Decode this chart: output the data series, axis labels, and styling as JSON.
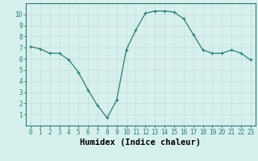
{
  "x": [
    0,
    1,
    2,
    3,
    4,
    5,
    6,
    7,
    8,
    9,
    10,
    11,
    12,
    13,
    14,
    15,
    16,
    17,
    18,
    19,
    20,
    21,
    22,
    23
  ],
  "y": [
    7.1,
    6.9,
    6.5,
    6.5,
    5.9,
    4.8,
    3.2,
    1.8,
    0.7,
    2.3,
    6.8,
    8.6,
    10.1,
    10.3,
    10.3,
    10.2,
    9.6,
    8.2,
    6.8,
    6.5,
    6.5,
    6.8,
    6.5,
    5.9
  ],
  "line_color": "#2d7d6e",
  "marker": "+",
  "marker_size": 3,
  "marker_linewidth": 0.8,
  "linewidth": 0.9,
  "background_color": "#d6f0ee",
  "grid_color": "#c8ddd9",
  "xlabel": "Humidex (Indice chaleur)",
  "xlim": [
    -0.5,
    23.5
  ],
  "ylim": [
    0,
    11
  ],
  "xticks": [
    0,
    1,
    2,
    3,
    4,
    5,
    6,
    7,
    8,
    9,
    10,
    11,
    12,
    13,
    14,
    15,
    16,
    17,
    18,
    19,
    20,
    21,
    22,
    23
  ],
  "xtick_labels": [
    "0",
    "1",
    "2",
    "3",
    "4",
    "5",
    "6",
    "7",
    "8",
    "9",
    "10",
    "11",
    "12",
    "13",
    "14",
    "15",
    "16",
    "17",
    "18",
    "19",
    "20",
    "21",
    "22",
    "23"
  ],
  "yticks": [
    1,
    2,
    3,
    4,
    5,
    6,
    7,
    8,
    9,
    10
  ],
  "tick_label_fontsize": 5.5,
  "xlabel_fontsize": 7.5,
  "border_color": "#2d7d6e",
  "spine_linewidth": 0.8
}
